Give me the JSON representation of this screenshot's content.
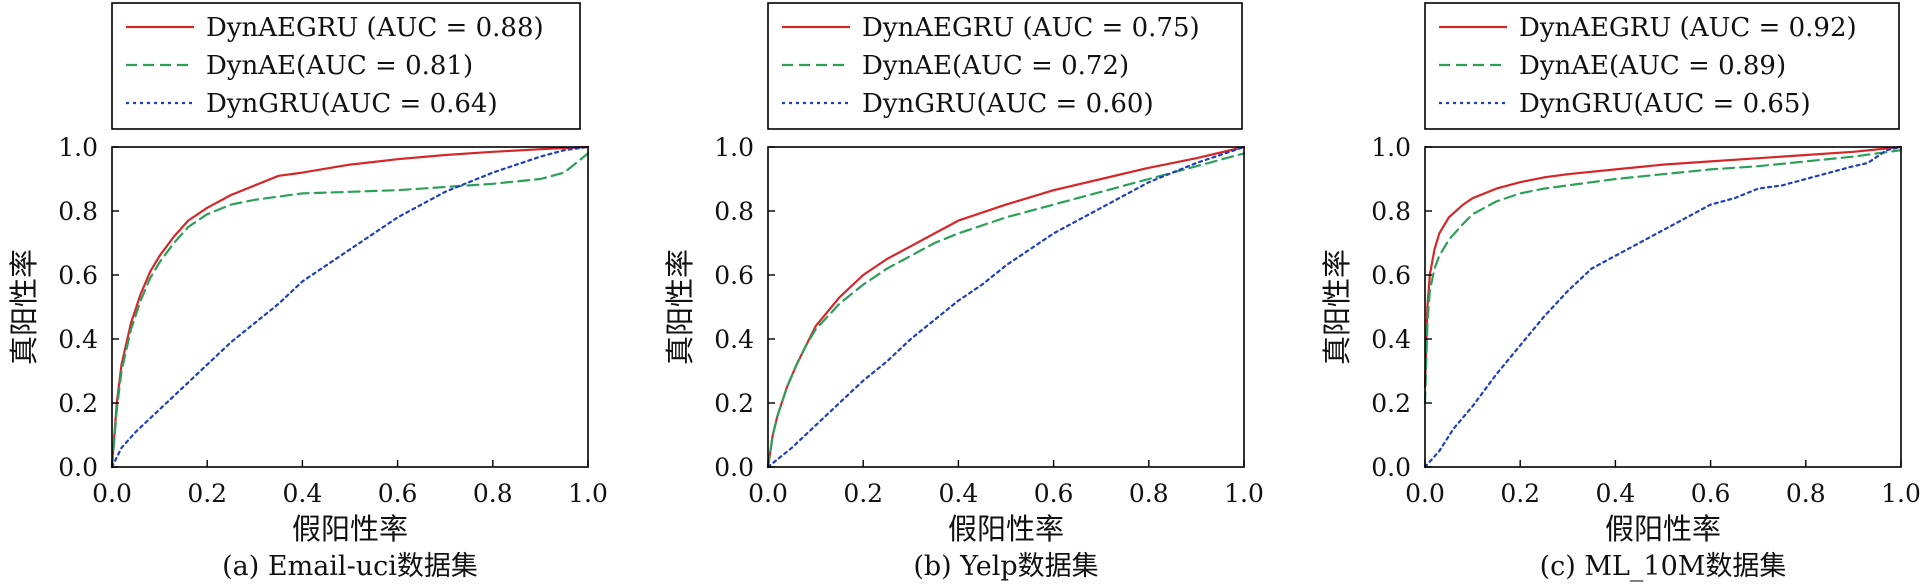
{
  "chart_data": [
    {
      "type": "line",
      "caption": "(a) Email-uci数据集",
      "xlabel": "假阳性率",
      "ylabel": "真阳性率",
      "xlim": [
        0,
        1
      ],
      "ylim": [
        0,
        1
      ],
      "xticks": [
        "0.0",
        "0.2",
        "0.4",
        "0.6",
        "0.8",
        "1.0"
      ],
      "yticks": [
        "0.0",
        "0.2",
        "0.4",
        "0.6",
        "0.8",
        "1.0"
      ],
      "grid": false,
      "legend_position": "top",
      "series": [
        {
          "name": "DynAEGRU (AUC = 0.88)",
          "color": "#d62728",
          "dash": "solid",
          "points": [
            [
              0,
              0
            ],
            [
              0.01,
              0.2
            ],
            [
              0.02,
              0.32
            ],
            [
              0.04,
              0.45
            ],
            [
              0.06,
              0.54
            ],
            [
              0.08,
              0.61
            ],
            [
              0.1,
              0.66
            ],
            [
              0.13,
              0.72
            ],
            [
              0.16,
              0.77
            ],
            [
              0.2,
              0.81
            ],
            [
              0.25,
              0.85
            ],
            [
              0.3,
              0.88
            ],
            [
              0.35,
              0.91
            ],
            [
              0.4,
              0.92
            ],
            [
              0.5,
              0.945
            ],
            [
              0.6,
              0.962
            ],
            [
              0.7,
              0.975
            ],
            [
              0.8,
              0.985
            ],
            [
              0.9,
              0.993
            ],
            [
              1,
              1
            ]
          ]
        },
        {
          "name": "DynAE(AUC = 0.81)",
          "color": "#2ca05a",
          "dash": "dashed",
          "points": [
            [
              0,
              0
            ],
            [
              0.01,
              0.18
            ],
            [
              0.02,
              0.3
            ],
            [
              0.04,
              0.43
            ],
            [
              0.06,
              0.52
            ],
            [
              0.08,
              0.59
            ],
            [
              0.1,
              0.64
            ],
            [
              0.13,
              0.7
            ],
            [
              0.16,
              0.75
            ],
            [
              0.2,
              0.79
            ],
            [
              0.25,
              0.82
            ],
            [
              0.3,
              0.835
            ],
            [
              0.35,
              0.845
            ],
            [
              0.4,
              0.855
            ],
            [
              0.5,
              0.86
            ],
            [
              0.6,
              0.865
            ],
            [
              0.7,
              0.875
            ],
            [
              0.8,
              0.885
            ],
            [
              0.9,
              0.9
            ],
            [
              0.95,
              0.92
            ],
            [
              1,
              0.98
            ]
          ]
        },
        {
          "name": "DynGRU(AUC = 0.64)",
          "color": "#1f3fbf",
          "dash": "dotted",
          "points": [
            [
              0,
              0
            ],
            [
              0.02,
              0.06
            ],
            [
              0.05,
              0.11
            ],
            [
              0.1,
              0.18
            ],
            [
              0.15,
              0.25
            ],
            [
              0.2,
              0.32
            ],
            [
              0.25,
              0.39
            ],
            [
              0.3,
              0.45
            ],
            [
              0.35,
              0.51
            ],
            [
              0.4,
              0.58
            ],
            [
              0.45,
              0.63
            ],
            [
              0.5,
              0.68
            ],
            [
              0.55,
              0.73
            ],
            [
              0.6,
              0.78
            ],
            [
              0.65,
              0.82
            ],
            [
              0.7,
              0.86
            ],
            [
              0.75,
              0.89
            ],
            [
              0.8,
              0.92
            ],
            [
              0.85,
              0.945
            ],
            [
              0.9,
              0.97
            ],
            [
              0.95,
              0.99
            ],
            [
              1,
              1
            ]
          ]
        }
      ]
    },
    {
      "type": "line",
      "caption": "(b) Yelp数据集",
      "xlabel": "假阳性率",
      "ylabel": "真阳性率",
      "xlim": [
        0,
        1
      ],
      "ylim": [
        0,
        1
      ],
      "xticks": [
        "0.0",
        "0.2",
        "0.4",
        "0.6",
        "0.8",
        "1.0"
      ],
      "yticks": [
        "0.0",
        "0.2",
        "0.4",
        "0.6",
        "0.8",
        "1.0"
      ],
      "grid": false,
      "legend_position": "top",
      "series": [
        {
          "name": "DynAEGRU (AUC = 0.75)",
          "color": "#d62728",
          "dash": "solid",
          "points": [
            [
              0,
              0
            ],
            [
              0.01,
              0.1
            ],
            [
              0.02,
              0.16
            ],
            [
              0.04,
              0.25
            ],
            [
              0.06,
              0.32
            ],
            [
              0.08,
              0.38
            ],
            [
              0.1,
              0.44
            ],
            [
              0.15,
              0.53
            ],
            [
              0.2,
              0.6
            ],
            [
              0.25,
              0.65
            ],
            [
              0.3,
              0.69
            ],
            [
              0.35,
              0.73
            ],
            [
              0.4,
              0.77
            ],
            [
              0.5,
              0.82
            ],
            [
              0.6,
              0.865
            ],
            [
              0.7,
              0.9
            ],
            [
              0.8,
              0.935
            ],
            [
              0.9,
              0.965
            ],
            [
              1,
              1
            ]
          ]
        },
        {
          "name": "DynAE(AUC = 0.72)",
          "color": "#2ca05a",
          "dash": "dashed",
          "points": [
            [
              0,
              0
            ],
            [
              0.01,
              0.1
            ],
            [
              0.02,
              0.16
            ],
            [
              0.04,
              0.25
            ],
            [
              0.06,
              0.32
            ],
            [
              0.08,
              0.38
            ],
            [
              0.1,
              0.43
            ],
            [
              0.15,
              0.51
            ],
            [
              0.2,
              0.57
            ],
            [
              0.25,
              0.62
            ],
            [
              0.3,
              0.66
            ],
            [
              0.35,
              0.7
            ],
            [
              0.4,
              0.73
            ],
            [
              0.5,
              0.78
            ],
            [
              0.6,
              0.82
            ],
            [
              0.7,
              0.86
            ],
            [
              0.8,
              0.9
            ],
            [
              0.9,
              0.94
            ],
            [
              1,
              0.98
            ]
          ]
        },
        {
          "name": "DynGRU(AUC = 0.60)",
          "color": "#1f3fbf",
          "dash": "dotted",
          "points": [
            [
              0,
              0
            ],
            [
              0.05,
              0.06
            ],
            [
              0.1,
              0.13
            ],
            [
              0.15,
              0.2
            ],
            [
              0.2,
              0.27
            ],
            [
              0.25,
              0.33
            ],
            [
              0.3,
              0.4
            ],
            [
              0.35,
              0.46
            ],
            [
              0.4,
              0.52
            ],
            [
              0.45,
              0.57
            ],
            [
              0.5,
              0.63
            ],
            [
              0.55,
              0.68
            ],
            [
              0.6,
              0.73
            ],
            [
              0.65,
              0.77
            ],
            [
              0.7,
              0.81
            ],
            [
              0.75,
              0.85
            ],
            [
              0.8,
              0.89
            ],
            [
              0.85,
              0.92
            ],
            [
              0.9,
              0.95
            ],
            [
              0.95,
              0.975
            ],
            [
              1,
              1
            ]
          ]
        }
      ]
    },
    {
      "type": "line",
      "caption": "(c) ML_10M数据集",
      "xlabel": "假阳性率",
      "ylabel": "真阳性率",
      "xlim": [
        0,
        1
      ],
      "ylim": [
        0,
        1
      ],
      "xticks": [
        "0.0",
        "0.2",
        "0.4",
        "0.6",
        "0.8",
        "1.0"
      ],
      "yticks": [
        "0.0",
        "0.2",
        "0.4",
        "0.6",
        "0.8",
        "1.0"
      ],
      "grid": false,
      "legend_position": "top",
      "series": [
        {
          "name": "DynAEGRU (AUC = 0.92)",
          "color": "#d62728",
          "dash": "solid",
          "points": [
            [
              0,
              0.25
            ],
            [
              0.005,
              0.5
            ],
            [
              0.01,
              0.6
            ],
            [
              0.02,
              0.68
            ],
            [
              0.03,
              0.73
            ],
            [
              0.05,
              0.78
            ],
            [
              0.08,
              0.82
            ],
            [
              0.1,
              0.84
            ],
            [
              0.15,
              0.87
            ],
            [
              0.2,
              0.89
            ],
            [
              0.25,
              0.905
            ],
            [
              0.3,
              0.915
            ],
            [
              0.4,
              0.93
            ],
            [
              0.5,
              0.945
            ],
            [
              0.6,
              0.955
            ],
            [
              0.7,
              0.965
            ],
            [
              0.8,
              0.975
            ],
            [
              0.9,
              0.985
            ],
            [
              1,
              1
            ]
          ]
        },
        {
          "name": "DynAE(AUC = 0.89)",
          "color": "#2ca05a",
          "dash": "dashed",
          "points": [
            [
              0,
              0.2
            ],
            [
              0.005,
              0.45
            ],
            [
              0.01,
              0.55
            ],
            [
              0.02,
              0.62
            ],
            [
              0.03,
              0.66
            ],
            [
              0.05,
              0.71
            ],
            [
              0.08,
              0.76
            ],
            [
              0.1,
              0.79
            ],
            [
              0.15,
              0.83
            ],
            [
              0.2,
              0.855
            ],
            [
              0.25,
              0.87
            ],
            [
              0.3,
              0.88
            ],
            [
              0.4,
              0.9
            ],
            [
              0.5,
              0.915
            ],
            [
              0.6,
              0.93
            ],
            [
              0.7,
              0.94
            ],
            [
              0.8,
              0.955
            ],
            [
              0.9,
              0.97
            ],
            [
              1,
              0.99
            ]
          ]
        },
        {
          "name": "DynGRU(AUC = 0.65)",
          "color": "#1f3fbf",
          "dash": "dotted",
          "points": [
            [
              0,
              0
            ],
            [
              0.03,
              0.05
            ],
            [
              0.06,
              0.12
            ],
            [
              0.1,
              0.19
            ],
            [
              0.15,
              0.29
            ],
            [
              0.2,
              0.38
            ],
            [
              0.25,
              0.47
            ],
            [
              0.3,
              0.55
            ],
            [
              0.35,
              0.62
            ],
            [
              0.4,
              0.66
            ],
            [
              0.45,
              0.7
            ],
            [
              0.5,
              0.74
            ],
            [
              0.55,
              0.78
            ],
            [
              0.6,
              0.82
            ],
            [
              0.65,
              0.84
            ],
            [
              0.7,
              0.87
            ],
            [
              0.75,
              0.88
            ],
            [
              0.8,
              0.9
            ],
            [
              0.85,
              0.92
            ],
            [
              0.9,
              0.94
            ],
            [
              0.93,
              0.95
            ],
            [
              0.97,
              0.99
            ],
            [
              1,
              1
            ]
          ]
        }
      ]
    }
  ]
}
